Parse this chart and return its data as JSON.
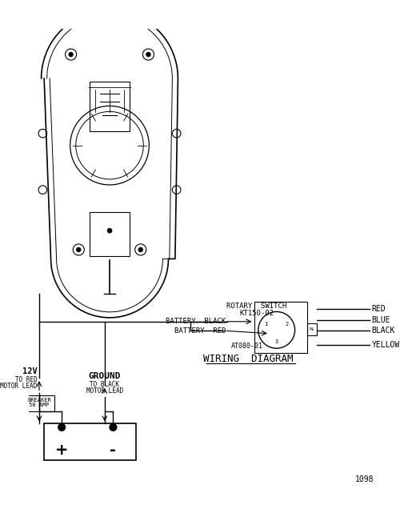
{
  "title": "WIRING  DIAGRAM",
  "bg_color": "#ffffff",
  "line_color": "#000000",
  "text_color": "#000000",
  "page_number": "1098",
  "labels": {
    "rotary_switch_line1": "ROTARY  SWITCH",
    "rotary_switch_line2": "KT150-02",
    "battery_black": "BATTERY  BLACK",
    "battery_red": "BATTERY  RED",
    "at080": "AT080-01",
    "wire_red": "RED",
    "wire_blue": "BLUE",
    "wire_black": "BLACK",
    "wire_yellow": "YELLOW",
    "voltage": "12V",
    "to_red_line1": "TO RED",
    "to_red_line2": "MOTOR LEAD",
    "ground": "GROUND",
    "to_black_line1": "TO BLACK",
    "to_black_line2": "MOTOR LEAD",
    "breaker_line1": "50 AMP",
    "breaker_line2": "BREAKER",
    "plus": "+",
    "minus": "-",
    "n_minus": "N-"
  }
}
